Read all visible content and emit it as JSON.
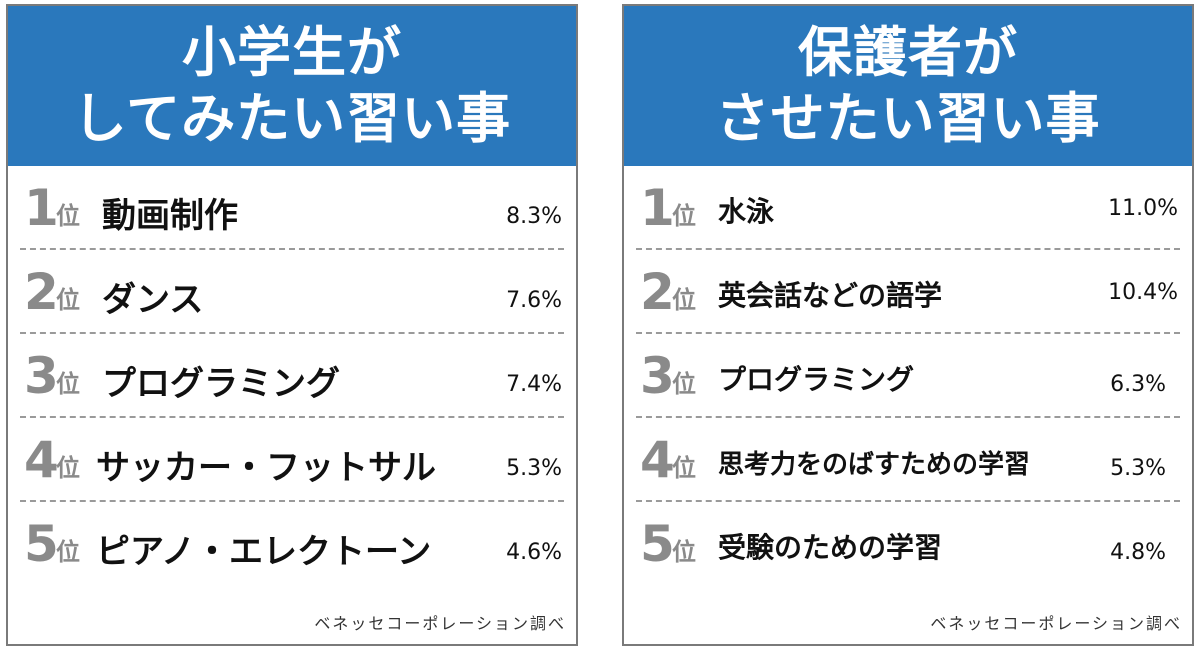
{
  "chart_data": [
    {
      "type": "table",
      "title_lines": [
        "小学生が",
        "してみたい習い事"
      ],
      "rank_unit": "位",
      "rows": [
        {
          "rank": "1",
          "item": "動画制作",
          "value": "8.3%"
        },
        {
          "rank": "2",
          "item": "ダンス",
          "value": "7.6%"
        },
        {
          "rank": "3",
          "item": "プログラミング",
          "value": "7.4%"
        },
        {
          "rank": "4",
          "item": "サッカー・フットサル",
          "value": "5.3%"
        },
        {
          "rank": "5",
          "item": "ピアノ・エレクトーン",
          "value": "4.6%"
        }
      ],
      "source": "ベネッセコーポレーション調べ",
      "header_color": "#2a78bc"
    },
    {
      "type": "table",
      "title_lines": [
        "保護者が",
        "させたい習い事"
      ],
      "rank_unit": "位",
      "rows": [
        {
          "rank": "1",
          "item": "水泳",
          "value": "11.0%"
        },
        {
          "rank": "2",
          "item": "英会話などの語学",
          "value": "10.4%"
        },
        {
          "rank": "3",
          "item": "プログラミング",
          "value": "6.3%"
        },
        {
          "rank": "4",
          "item": "思考力をのばすための学習",
          "value": "5.3%"
        },
        {
          "rank": "5",
          "item": "受験のための学習",
          "value": "4.8%"
        }
      ],
      "source": "ベネッセコーポレーション調べ",
      "header_color": "#2a78bc"
    }
  ]
}
